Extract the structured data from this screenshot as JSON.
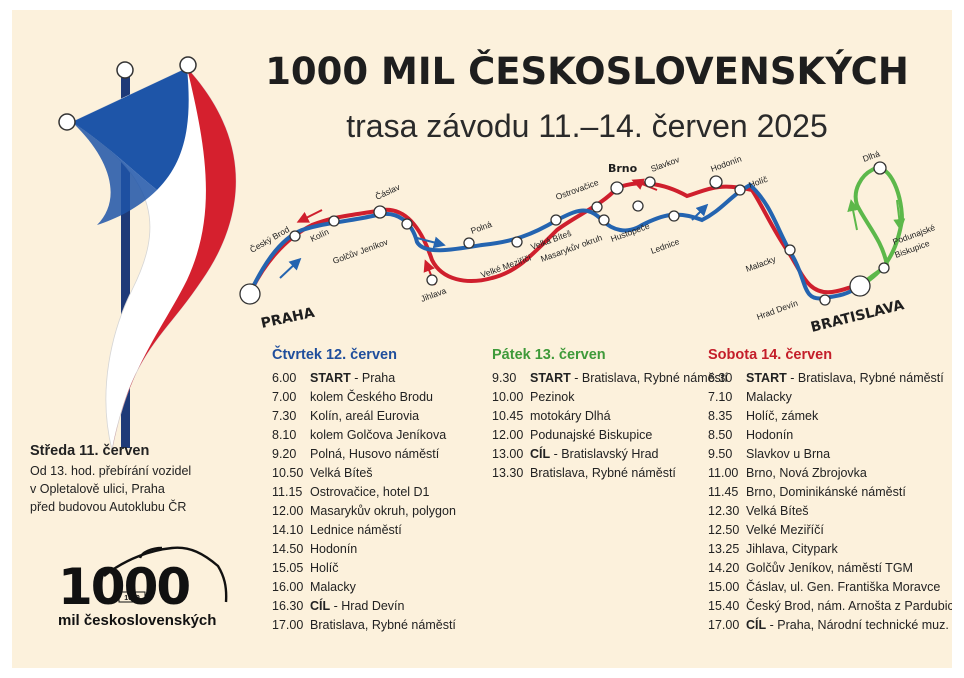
{
  "header": {
    "title": "1000 MIL ČESKOSLOVENSKÝCH",
    "subtitle": "trasa závodu 11.–14. červen 2025"
  },
  "map": {
    "cities": {
      "praha": "PRAHA",
      "bratislava": "BRATISLAVA",
      "brno": "Brno"
    },
    "labels": {
      "cesky_brod": "Český Brod",
      "kolin": "Kolín",
      "caslav": "Čáslav",
      "golcuv": "Golčův Jeníkov",
      "jihlava": "Jihlava",
      "polna": "Polná",
      "velke_mezirici": "Velké Meziříčí",
      "velka_bites": "Velká Bíteš",
      "ostrovacice": "Ostrovačice",
      "masarykuv": "Masarykův okruh",
      "slavkov": "Slavkov",
      "hustopece": "Hustopeče",
      "lednice": "Lednice",
      "hodonin": "Hodonín",
      "holic": "Holíč",
      "malacky": "Malacky",
      "hrad_devin": "Hrad Devín",
      "dlha": "Dlhá",
      "podunajske_1": "Podunajské",
      "podunajske_2": "Biskupice"
    },
    "colors": {
      "red": "#cf1f2d",
      "blue": "#2464b0",
      "green": "#5cb84a"
    }
  },
  "wednesday": {
    "title": "Středa 11. červen",
    "lines": [
      "Od 13. hod. přebírání vozidel",
      "v Opletalově ulici, Praha",
      "před budovou Autoklubu ČR"
    ]
  },
  "days": [
    {
      "title": "Čtvrtek 12. červen",
      "color": "#1f4e9c",
      "rows": [
        {
          "time": "6.00",
          "bold": "START",
          "text": " - Praha"
        },
        {
          "time": "7.00",
          "bold": "",
          "text": "kolem Českého Brodu"
        },
        {
          "time": "7.30",
          "bold": "",
          "text": "Kolín, areál Eurovia"
        },
        {
          "time": "8.10",
          "bold": "",
          "text": "kolem Golčova Jeníkova"
        },
        {
          "time": "9.20",
          "bold": "",
          "text": "Polná, Husovo náměstí"
        },
        {
          "time": "10.50",
          "bold": "",
          "text": "Velká Bíteš"
        },
        {
          "time": "11.15",
          "bold": "",
          "text": "Ostrovačice, hotel D1"
        },
        {
          "time": "12.00",
          "bold": "",
          "text": "Masarykův okruh, polygon"
        },
        {
          "time": "14.10",
          "bold": "",
          "text": "Lednice náměstí"
        },
        {
          "time": "14.50",
          "bold": "",
          "text": "Hodonín"
        },
        {
          "time": "15.05",
          "bold": "",
          "text": "Holíč"
        },
        {
          "time": "16.00",
          "bold": "",
          "text": "Malacky"
        },
        {
          "time": "16.30",
          "bold": "CÍL",
          "text": " - Hrad Devín"
        },
        {
          "time": "17.00",
          "bold": "",
          "text": "Bratislava, Rybné náměstí"
        }
      ]
    },
    {
      "title": "Pátek 13. červen",
      "color": "#3f9a3a",
      "rows": [
        {
          "time": "9.30",
          "bold": "START",
          "text": " - Bratislava, Rybné náměstí"
        },
        {
          "time": "10.00",
          "bold": "",
          "text": "Pezinok"
        },
        {
          "time": "10.45",
          "bold": "",
          "text": "motokáry Dlhá"
        },
        {
          "time": "12.00",
          "bold": "",
          "text": "Podunajské Biskupice"
        },
        {
          "time": "13.00",
          "bold": "CÍL",
          "text": " - Bratislavský Hrad"
        },
        {
          "time": "13.30",
          "bold": "",
          "text": "Bratislava, Rybné náměstí"
        }
      ]
    },
    {
      "title": "Sobota 14. červen",
      "color": "#c41e2a",
      "rows": [
        {
          "time": "6.30",
          "bold": "START",
          "text": " - Bratislava, Rybné náměstí"
        },
        {
          "time": "7.10",
          "bold": "",
          "text": "Malacky"
        },
        {
          "time": "8.35",
          "bold": "",
          "text": "Holíč, zámek"
        },
        {
          "time": "8.50",
          "bold": "",
          "text": "Hodonín"
        },
        {
          "time": "9.50",
          "bold": "",
          "text": "Slavkov u Brna"
        },
        {
          "time": "11.00",
          "bold": "",
          "text": "Brno, Nová Zbrojovka"
        },
        {
          "time": "11.45",
          "bold": "",
          "text": "Brno, Dominikánské náměstí"
        },
        {
          "time": "12.30",
          "bold": "",
          "text": "Velká Bíteš"
        },
        {
          "time": "12.50",
          "bold": "",
          "text": "Velké Meziříčí"
        },
        {
          "time": "13.25",
          "bold": "",
          "text": "Jihlava, Citypark"
        },
        {
          "time": "14.20",
          "bold": "",
          "text": "Golčův Jeníkov, náměstí TGM"
        },
        {
          "time": "15.00",
          "bold": "",
          "text": "Čáslav, ul. Gen. Františka Moravce"
        },
        {
          "time": "15.40",
          "bold": "",
          "text": "Český Brod, nám. Arnošta z Pardubic"
        },
        {
          "time": "17.00",
          "bold": "CÍL",
          "text": " - Praha, Národní technické muz."
        }
      ]
    }
  ],
  "logo": {
    "number": "1000",
    "plate": "1000",
    "text": "mil československých"
  }
}
